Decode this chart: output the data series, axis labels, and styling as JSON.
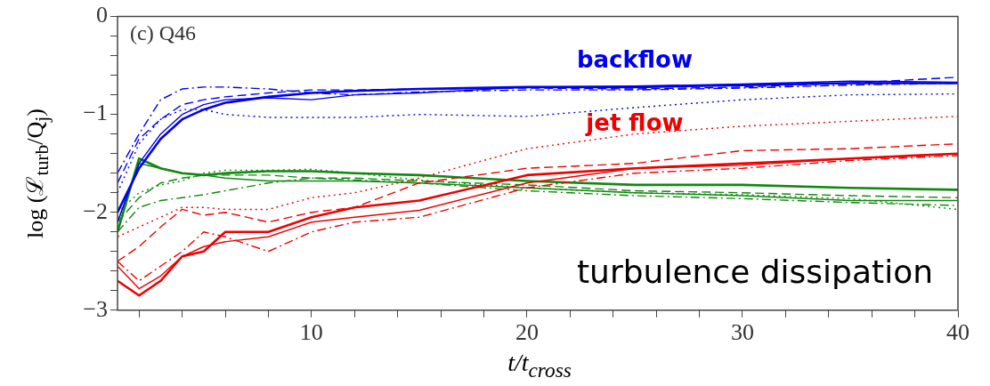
{
  "chart_data": {
    "type": "line",
    "xlabel": "t/t$_{cross}$",
    "ylabel": "log (ℒ$_{turb}$/Q$_{j}$)",
    "x": [
      1,
      2,
      3,
      4,
      5,
      6,
      8,
      10,
      12,
      15,
      20,
      25,
      30,
      35,
      40
    ],
    "xlim": [
      1,
      40
    ],
    "xticks": [
      {
        "value": 2,
        "label": null
      },
      {
        "value": 4,
        "label": null
      },
      {
        "value": 6,
        "label": null
      },
      {
        "value": 8,
        "label": null
      },
      10,
      {
        "value": 12,
        "label": null
      },
      {
        "value": 14,
        "label": null
      },
      {
        "value": 16,
        "label": null
      },
      {
        "value": 18,
        "label": null
      },
      20,
      {
        "value": 22,
        "label": null
      },
      {
        "value": 24,
        "label": null
      },
      {
        "value": 26,
        "label": null
      },
      {
        "value": 28,
        "label": null
      },
      30,
      {
        "value": 32,
        "label": null
      },
      {
        "value": 34,
        "label": null
      },
      {
        "value": 36,
        "label": null
      },
      {
        "value": 38,
        "label": null
      },
      40
    ],
    "ylim": [
      -3,
      0
    ],
    "yticks": [
      -3,
      {
        "value": -2.8,
        "label": null
      },
      {
        "value": -2.6,
        "label": null
      },
      {
        "value": -2.4,
        "label": null
      },
      {
        "value": -2.2,
        "label": null
      },
      -2,
      {
        "value": -1.8,
        "label": null
      },
      {
        "value": -1.6,
        "label": null
      },
      {
        "value": -1.4,
        "label": null
      },
      {
        "value": -1.2,
        "label": null
      },
      -1,
      {
        "value": -0.8,
        "label": null
      },
      {
        "value": -0.6,
        "label": null
      },
      {
        "value": -0.4,
        "label": null
      },
      {
        "value": -0.2,
        "label": null
      },
      0
    ],
    "grid": false,
    "legend": false,
    "marker": "none",
    "annotations": [
      "(c) Q46",
      "turbulence dissipation"
    ],
    "series": [
      {
        "name": "backflow",
        "color": "#0000ee",
        "line_style": "solid",
        "values": [
          -2.0,
          -1.55,
          -1.25,
          -1.05,
          -0.95,
          -0.88,
          -0.82,
          -0.78,
          -0.76,
          -0.74,
          -0.72,
          -0.72,
          -0.7,
          -0.68,
          -0.68
        ]
      },
      {
        "color": "#0000ee",
        "line_style": "solid",
        "values": [
          -2.1,
          -1.5,
          -1.2,
          -1.0,
          -0.9,
          -0.85,
          -0.83,
          -0.85,
          -0.8,
          -0.78,
          -0.72,
          -0.71,
          -0.69,
          -0.66,
          -0.67
        ]
      },
      {
        "color": "#0000ee",
        "line_style": "dashed",
        "values": [
          -1.7,
          -1.25,
          -1.05,
          -0.9,
          -0.85,
          -0.82,
          -0.78,
          -0.75,
          -0.75,
          -0.74,
          -0.73,
          -0.74,
          -0.72,
          -0.68,
          -0.62
        ]
      },
      {
        "color": "#0000ee",
        "line_style": "dashdot",
        "values": [
          -1.6,
          -1.2,
          -0.85,
          -0.74,
          -0.72,
          -0.72,
          -0.74,
          -0.78,
          -0.8,
          -0.77,
          -0.75,
          -0.75,
          -0.73,
          -0.7,
          -0.68
        ]
      },
      {
        "color": "#0000ee",
        "line_style": "dotted",
        "values": [
          -1.8,
          -1.3,
          -1.05,
          -0.95,
          -0.95,
          -1.0,
          -1.03,
          -1.03,
          -1.03,
          -1.0,
          -1.02,
          -0.93,
          -0.85,
          -0.8,
          -0.79
        ]
      },
      {
        "name": "jet flow",
        "color": "#ee0000",
        "line_style": "solid",
        "values": [
          -2.7,
          -2.85,
          -2.7,
          -2.45,
          -2.4,
          -2.2,
          -2.2,
          -2.05,
          -1.95,
          -1.88,
          -1.62,
          -1.55,
          -1.5,
          -1.45,
          -1.4
        ]
      },
      {
        "color": "#ee0000",
        "line_style": "solid",
        "values": [
          -2.55,
          -2.78,
          -2.65,
          -2.45,
          -2.35,
          -2.3,
          -2.25,
          -2.1,
          -2.05,
          -1.98,
          -1.7,
          -1.55,
          -1.52,
          -1.45,
          -1.4
        ]
      },
      {
        "color": "#ee0000",
        "line_style": "dashed",
        "values": [
          -2.5,
          -2.35,
          -2.15,
          -1.97,
          -2.03,
          -2.0,
          -2.1,
          -2.0,
          -1.95,
          -1.7,
          -1.55,
          -1.5,
          -1.37,
          -1.35,
          -1.3
        ]
      },
      {
        "color": "#ee0000",
        "line_style": "dashdot",
        "values": [
          -2.5,
          -2.7,
          -2.55,
          -2.4,
          -2.2,
          -2.25,
          -2.4,
          -2.2,
          -2.1,
          -2.05,
          -1.75,
          -1.6,
          -1.55,
          -1.47,
          -1.42
        ]
      },
      {
        "color": "#ee0000",
        "line_style": "dotted",
        "values": [
          -2.25,
          -2.15,
          -2.05,
          -1.95,
          -1.95,
          -1.97,
          -1.97,
          -1.85,
          -1.8,
          -1.65,
          -1.35,
          -1.2,
          -1.12,
          -1.07,
          -1.02
        ]
      },
      {
        "color": "#118811",
        "line_style": "solid",
        "values": [
          -2.2,
          -1.45,
          -1.55,
          -1.6,
          -1.62,
          -1.6,
          -1.58,
          -1.58,
          -1.6,
          -1.62,
          -1.68,
          -1.72,
          -1.72,
          -1.75,
          -1.77
        ]
      },
      {
        "color": "#118811",
        "line_style": "solid",
        "values": [
          -2.1,
          -1.5,
          -1.55,
          -1.6,
          -1.62,
          -1.65,
          -1.68,
          -1.68,
          -1.68,
          -1.7,
          -1.75,
          -1.8,
          -1.83,
          -1.88,
          -1.88
        ]
      },
      {
        "color": "#118811",
        "line_style": "dashed",
        "values": [
          -2.1,
          -1.85,
          -1.7,
          -1.65,
          -1.62,
          -1.62,
          -1.62,
          -1.65,
          -1.65,
          -1.68,
          -1.72,
          -1.78,
          -1.8,
          -1.83,
          -1.85
        ]
      },
      {
        "color": "#118811",
        "line_style": "dashdot",
        "values": [
          -2.2,
          -1.95,
          -1.88,
          -1.85,
          -1.82,
          -1.78,
          -1.7,
          -1.65,
          -1.67,
          -1.7,
          -1.78,
          -1.83,
          -1.86,
          -1.9,
          -1.93
        ]
      },
      {
        "color": "#118811",
        "line_style": "dotted",
        "values": [
          -2.0,
          -1.8,
          -1.72,
          -1.68,
          -1.6,
          -1.57,
          -1.57,
          -1.56,
          -1.6,
          -1.67,
          -1.75,
          -1.8,
          -1.82,
          -1.86,
          -1.97
        ]
      }
    ]
  }
}
